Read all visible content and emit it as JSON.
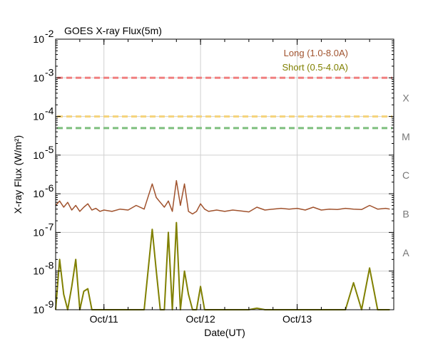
{
  "chart_data": {
    "type": "line",
    "title": "GOES X-ray Flux(5m)",
    "xlabel": "Date(UT)",
    "ylabel": "X-ray Flux (W/m²)",
    "yscale": "log",
    "ylim": [
      1e-09,
      0.01
    ],
    "xlim": [
      "2010-10-10T12:00",
      "2010-10-14T00:00"
    ],
    "grid": true,
    "legend_position": "top-right",
    "x_ticks": [
      {
        "label": "Oct/11",
        "x": "2010-10-11T00:00"
      },
      {
        "label": "Oct/12",
        "x": "2010-10-12T00:00"
      },
      {
        "label": "Oct/13",
        "x": "2010-10-13T00:00"
      }
    ],
    "y_ticks": [
      {
        "label": "10",
        "exp": "-9",
        "value": 1e-09
      },
      {
        "label": "10",
        "exp": "-8",
        "value": 1e-08
      },
      {
        "label": "10",
        "exp": "-7",
        "value": 1e-07
      },
      {
        "label": "10",
        "exp": "-6",
        "value": 1e-06
      },
      {
        "label": "10",
        "exp": "-5",
        "value": 1e-05
      },
      {
        "label": "10",
        "exp": "-4",
        "value": 0.0001
      },
      {
        "label": "10",
        "exp": "-3",
        "value": 0.001
      },
      {
        "label": "10",
        "exp": "-2",
        "value": 0.01
      }
    ],
    "flare_classes": [
      {
        "label": "A",
        "value": 3e-08
      },
      {
        "label": "B",
        "value": 3e-07
      },
      {
        "label": "C",
        "value": 3e-06
      },
      {
        "label": "M",
        "value": 3e-05
      },
      {
        "label": "X",
        "value": 0.0003
      }
    ],
    "threshold_lines": [
      {
        "value": 0.001,
        "color": "#f08080"
      },
      {
        "value": 0.0001,
        "color": "#f5d37a"
      },
      {
        "value": 5e-05,
        "color": "#7dbf7d"
      }
    ],
    "series": [
      {
        "name": "Long (1.0-8.0A)",
        "color": "#a0522d",
        "x": [
          "2010-10-10T12:00",
          "2010-10-10T13:00",
          "2010-10-10T14:00",
          "2010-10-10T15:00",
          "2010-10-10T16:00",
          "2010-10-10T17:00",
          "2010-10-10T18:00",
          "2010-10-10T19:00",
          "2010-10-10T20:00",
          "2010-10-10T21:00",
          "2010-10-10T22:00",
          "2010-10-10T23:00",
          "2010-10-11T00:00",
          "2010-10-11T02:00",
          "2010-10-11T04:00",
          "2010-10-11T06:00",
          "2010-10-11T08:00",
          "2010-10-11T10:00",
          "2010-10-11T12:00",
          "2010-10-11T13:00",
          "2010-10-11T14:00",
          "2010-10-11T15:00",
          "2010-10-11T16:00",
          "2010-10-11T17:00",
          "2010-10-11T18:00",
          "2010-10-11T19:00",
          "2010-10-11T20:00",
          "2010-10-11T21:00",
          "2010-10-11T22:00",
          "2010-10-11T23:00",
          "2010-10-12T00:00",
          "2010-10-12T01:00",
          "2010-10-12T02:00",
          "2010-10-12T04:00",
          "2010-10-12T06:00",
          "2010-10-12T08:00",
          "2010-10-12T10:00",
          "2010-10-12T12:00",
          "2010-10-12T14:00",
          "2010-10-12T16:00",
          "2010-10-12T18:00",
          "2010-10-12T20:00",
          "2010-10-12T22:00",
          "2010-10-13T00:00",
          "2010-10-13T02:00",
          "2010-10-13T04:00",
          "2010-10-13T06:00",
          "2010-10-13T08:00",
          "2010-10-13T10:00",
          "2010-10-13T12:00",
          "2010-10-13T14:00",
          "2010-10-13T16:00",
          "2010-10-13T18:00",
          "2010-10-13T20:00",
          "2010-10-13T22:00",
          "2010-10-13T23:00"
        ],
        "values": [
          5e-07,
          6.5e-07,
          4.5e-07,
          6e-07,
          3.8e-07,
          5e-07,
          3.5e-07,
          4.5e-07,
          5.5e-07,
          3.8e-07,
          4.2e-07,
          3.5e-07,
          3.8e-07,
          3.5e-07,
          4e-07,
          3.8e-07,
          5e-07,
          4e-07,
          1.8e-06,
          8e-07,
          6e-07,
          4.5e-07,
          6.5e-07,
          3.5e-07,
          2.2e-06,
          5e-07,
          1.8e-06,
          3.5e-07,
          3e-07,
          3.5e-07,
          5.5e-07,
          4e-07,
          3.5e-07,
          3.8e-07,
          3.5e-07,
          3.8e-07,
          3.6e-07,
          3.4e-07,
          4.5e-07,
          3.8e-07,
          4e-07,
          4.2e-07,
          4e-07,
          4.2e-07,
          3.8e-07,
          4.5e-07,
          3.8e-07,
          4e-07,
          3.9e-07,
          4.2e-07,
          4e-07,
          3.9e-07,
          5e-07,
          4e-07,
          4.2e-07,
          4e-07
        ]
      },
      {
        "name": "Short (0.5-4.0A)",
        "color": "#808000",
        "x": [
          "2010-10-10T12:00",
          "2010-10-10T13:00",
          "2010-10-10T14:00",
          "2010-10-10T15:00",
          "2010-10-10T16:00",
          "2010-10-10T17:00",
          "2010-10-10T18:00",
          "2010-10-10T19:00",
          "2010-10-10T20:00",
          "2010-10-10T21:00",
          "2010-10-10T22:00",
          "2010-10-10T23:00",
          "2010-10-11T00:00",
          "2010-10-11T02:00",
          "2010-10-11T04:00",
          "2010-10-11T06:00",
          "2010-10-11T08:00",
          "2010-10-11T10:00",
          "2010-10-11T12:00",
          "2010-10-11T13:00",
          "2010-10-11T14:00",
          "2010-10-11T15:00",
          "2010-10-11T16:00",
          "2010-10-11T17:00",
          "2010-10-11T18:00",
          "2010-10-11T19:00",
          "2010-10-11T20:00",
          "2010-10-11T21:00",
          "2010-10-11T22:00",
          "2010-10-11T23:00",
          "2010-10-12T00:00",
          "2010-10-12T01:00",
          "2010-10-12T02:00",
          "2010-10-12T04:00",
          "2010-10-12T06:00",
          "2010-10-12T08:00",
          "2010-10-12T10:00",
          "2010-10-12T12:00",
          "2010-10-12T14:00",
          "2010-10-12T16:00",
          "2010-10-12T18:00",
          "2010-10-12T20:00",
          "2010-10-12T22:00",
          "2010-10-13T00:00",
          "2010-10-13T02:00",
          "2010-10-13T04:00",
          "2010-10-13T06:00",
          "2010-10-13T08:00",
          "2010-10-13T10:00",
          "2010-10-13T12:00",
          "2010-10-13T14:00",
          "2010-10-13T16:00",
          "2010-10-13T18:00",
          "2010-10-13T20:00",
          "2010-10-13T22:00",
          "2010-10-13T23:00"
        ],
        "values": [
          1e-09,
          2e-08,
          2.5e-09,
          1e-09,
          4e-09,
          2e-08,
          1e-09,
          3e-09,
          3.5e-09,
          1e-09,
          1e-09,
          1e-09,
          1e-09,
          1e-09,
          1e-09,
          1e-09,
          1e-09,
          1e-09,
          1.2e-07,
          1e-08,
          1e-09,
          1e-09,
          1e-07,
          1e-09,
          1.8e-07,
          1e-09,
          1e-08,
          2.5e-09,
          1e-09,
          1e-09,
          4e-09,
          1e-09,
          1e-09,
          1e-09,
          1e-09,
          1e-09,
          1e-09,
          1e-09,
          1.1e-09,
          1e-09,
          1e-09,
          1e-09,
          1e-09,
          1e-09,
          1e-09,
          1e-09,
          1e-09,
          1e-09,
          1e-09,
          1e-09,
          5e-09,
          1e-09,
          1.2e-08,
          1e-09,
          1e-09,
          1e-09
        ]
      }
    ]
  }
}
